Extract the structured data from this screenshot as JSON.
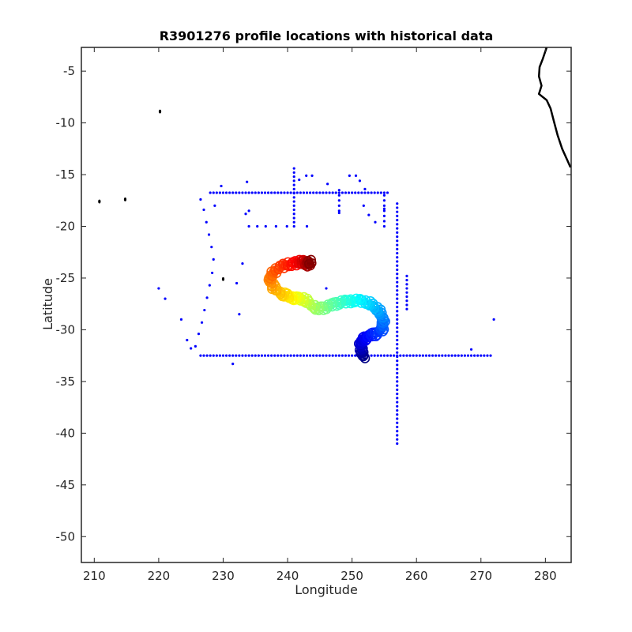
{
  "chart_data": {
    "type": "scatter",
    "title": "R3901276 profile locations with historical data",
    "xlabel": "Longitude",
    "ylabel": "Latitude",
    "xlim": [
      208,
      284
    ],
    "ylim": [
      -52.5,
      -2.7
    ],
    "xticks": [
      210,
      220,
      230,
      240,
      250,
      260,
      270,
      280
    ],
    "yticks": [
      -5,
      -10,
      -15,
      -20,
      -25,
      -30,
      -35,
      -40,
      -45,
      -50
    ],
    "grid": false,
    "legend": "none",
    "colors": {
      "historical": "#0000ff",
      "coast": "#000000",
      "axis": "#262626"
    },
    "series": [
      {
        "kind": "historical-points",
        "lines": [
          {
            "axis": "lat",
            "at": -32.5,
            "from": 226.5,
            "to": 271.5,
            "step": 0.5
          },
          {
            "axis": "lat",
            "at": -16.75,
            "from": 228.0,
            "to": 255.5,
            "step": 0.5
          },
          {
            "axis": "lon",
            "at": 257.0,
            "from": -41.0,
            "to": -17.5,
            "step": 0.4
          },
          {
            "axis": "lon",
            "at": 241.0,
            "from": -20.0,
            "to": -14.2,
            "step": 0.4
          },
          {
            "axis": "lon",
            "at": 255.0,
            "from": -20.0,
            "to": -17.0,
            "step": 0.5
          },
          {
            "axis": "lon",
            "at": 258.5,
            "from": -28.0,
            "to": -24.7,
            "step": 0.4
          },
          {
            "axis": "lon",
            "at": 248.0,
            "from": -18.5,
            "to": -16.2,
            "step": 0.5
          }
        ],
        "points": [
          [
            226.5,
            -17.4
          ],
          [
            227.0,
            -18.4
          ],
          [
            227.4,
            -19.6
          ],
          [
            227.8,
            -20.8
          ],
          [
            228.2,
            -22.0
          ],
          [
            228.5,
            -23.2
          ],
          [
            228.3,
            -24.5
          ],
          [
            227.9,
            -25.7
          ],
          [
            227.5,
            -26.9
          ],
          [
            227.1,
            -28.1
          ],
          [
            226.7,
            -29.3
          ],
          [
            226.2,
            -30.4
          ],
          [
            225.7,
            -31.6
          ],
          [
            220.0,
            -26.0
          ],
          [
            221.0,
            -27.0
          ],
          [
            223.5,
            -29.0
          ],
          [
            224.4,
            -31.0
          ],
          [
            225.0,
            -31.8
          ],
          [
            229.7,
            -16.1
          ],
          [
            228.7,
            -18.0
          ],
          [
            233.7,
            -15.7
          ],
          [
            233.5,
            -18.8
          ],
          [
            234.0,
            -18.5
          ],
          [
            234.0,
            -20.0
          ],
          [
            235.3,
            -20.0
          ],
          [
            236.6,
            -20.0
          ],
          [
            238.2,
            -20.0
          ],
          [
            239.9,
            -20.0
          ],
          [
            243.0,
            -20.0
          ],
          [
            241.8,
            -15.5
          ],
          [
            242.9,
            -15.1
          ],
          [
            243.8,
            -15.1
          ],
          [
            246.2,
            -15.9
          ],
          [
            249.6,
            -15.1
          ],
          [
            250.6,
            -15.1
          ],
          [
            251.2,
            -15.6
          ],
          [
            252.0,
            -16.4
          ],
          [
            248.0,
            -18.7
          ],
          [
            251.8,
            -18.0
          ],
          [
            252.6,
            -18.9
          ],
          [
            253.6,
            -19.6
          ],
          [
            255.0,
            -18.3
          ],
          [
            232.1,
            -25.5
          ],
          [
            232.5,
            -28.5
          ],
          [
            231.5,
            -33.3
          ],
          [
            233.0,
            -23.6
          ],
          [
            246.0,
            -26.0
          ],
          [
            268.5,
            -31.9
          ],
          [
            272.0,
            -29.0
          ]
        ]
      },
      {
        "kind": "float-track",
        "start": "#00007f",
        "end": "#7f0000",
        "track": [
          [
            251.8,
            -32.7
          ],
          [
            251.5,
            -32.1
          ],
          [
            251.3,
            -31.5
          ],
          [
            251.6,
            -31.0
          ],
          [
            252.5,
            -30.6
          ],
          [
            253.6,
            -30.4
          ],
          [
            254.6,
            -30.0
          ],
          [
            254.9,
            -29.4
          ],
          [
            254.6,
            -28.6
          ],
          [
            253.9,
            -28.0
          ],
          [
            252.8,
            -27.5
          ],
          [
            251.5,
            -27.2
          ],
          [
            250.0,
            -27.2
          ],
          [
            248.5,
            -27.3
          ],
          [
            247.2,
            -27.5
          ],
          [
            245.9,
            -27.8
          ],
          [
            244.6,
            -28.0
          ],
          [
            243.4,
            -27.5
          ],
          [
            242.4,
            -27.0
          ],
          [
            241.3,
            -27.0
          ],
          [
            240.2,
            -26.8
          ],
          [
            239.0,
            -26.5
          ],
          [
            237.8,
            -25.9
          ],
          [
            237.2,
            -25.2
          ],
          [
            237.6,
            -24.6
          ],
          [
            238.6,
            -24.0
          ],
          [
            239.9,
            -23.7
          ],
          [
            241.1,
            -23.6
          ],
          [
            242.1,
            -23.4
          ],
          [
            242.8,
            -23.5
          ],
          [
            243.2,
            -23.7
          ],
          [
            243.6,
            -23.4
          ]
        ]
      },
      {
        "kind": "coastline",
        "path": [
          [
            280.2,
            -2.7
          ],
          [
            279.6,
            -3.8
          ],
          [
            279.1,
            -4.6
          ],
          [
            279.0,
            -5.5
          ],
          [
            279.4,
            -6.4
          ],
          [
            279.0,
            -7.2
          ],
          [
            280.2,
            -7.8
          ],
          [
            280.8,
            -8.6
          ],
          [
            281.3,
            -9.8
          ],
          [
            281.9,
            -11.2
          ],
          [
            282.6,
            -12.5
          ],
          [
            283.4,
            -13.6
          ],
          [
            283.9,
            -14.3
          ]
        ],
        "islands": [
          [
            220.2,
            -8.9
          ],
          [
            210.8,
            -17.6
          ],
          [
            214.8,
            -17.4
          ],
          [
            230.0,
            -25.1
          ]
        ]
      }
    ]
  }
}
